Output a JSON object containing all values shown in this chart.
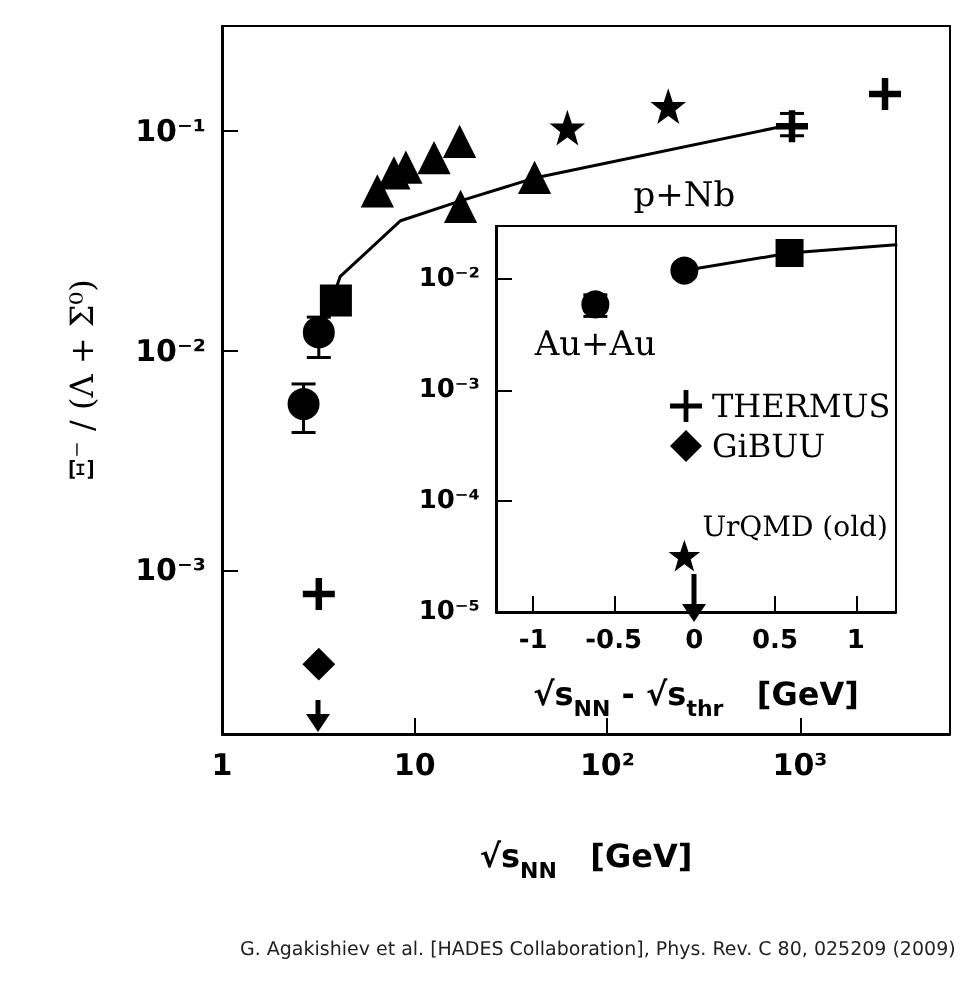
{
  "chart_data": [
    {
      "type": "scatter",
      "xlabel": "√s$_{NN}$   [GeV]",
      "ylabel": "Ξ⁻ / (Λ + Σ⁰)",
      "log": "xy",
      "xlim": [
        1,
        6000
      ],
      "ylim": [
        0.00018,
        0.3
      ],
      "xticks": [
        1,
        10,
        {
          "value": 100,
          "label": "10²"
        },
        {
          "value": 1000,
          "label": "10³"
        }
      ],
      "yticks": [
        {
          "value": 0.001,
          "label": "10⁻³"
        },
        {
          "value": 0.01,
          "label": "10⁻²"
        },
        {
          "value": 0.1,
          "label": "10⁻¹"
        }
      ],
      "grid": false,
      "legend": "right",
      "annotations": [
        "G. Agakishiev et al. [HADES Collaboration], Phys. Rev. C 80, 025209 (2009)"
      ],
      "series": [
        {
          "marker": "triangle",
          "color": "#000000",
          "x": [
            6.4,
            7.8,
            9.0,
            12.6,
            17.1
          ],
          "values": [
            0.053,
            0.064,
            0.068,
            0.075,
            0.089
          ]
        },
        {
          "marker": "star",
          "color": "#000000",
          "x": [
            62,
            207
          ],
          "values": [
            0.103,
            0.129
          ]
        },
        {
          "marker": "cross",
          "color": "#000000",
          "x": [
            2760
          ],
          "values": [
            0.147
          ]
        },
        {
          "marker": "cross",
          "color": "#000000",
          "x": [
            908
          ],
          "values": [
            0.105
          ],
          "errors": [
            [
              0.095,
              0.12
            ]
          ]
        },
        {
          "marker": "triangle",
          "color": "#000000",
          "x": [
            17.3
          ],
          "values": [
            0.045
          ]
        },
        {
          "marker": "triangle",
          "color": "#000000",
          "x": [
            41.9
          ],
          "values": [
            0.061
          ]
        },
        {
          "marker": "square",
          "color": "#000000",
          "x": [
            3.9
          ],
          "values": [
            0.0169
          ]
        },
        {
          "marker": "circle",
          "color": "#000000",
          "x": [
            3.18
          ],
          "values": [
            0.0121
          ],
          "errors": [
            [
              0.0093,
              0.0142
            ]
          ]
        },
        {
          "marker": "circle",
          "color": "#000000",
          "x": [
            2.65
          ],
          "values": [
            0.00571
          ],
          "errors": [
            [
              0.00424,
              0.00705
            ]
          ]
        },
        {
          "name": "THERMUS",
          "marker": "cross",
          "color": "#000000",
          "x": [
            3.18
          ],
          "values": [
            0.00078
          ]
        },
        {
          "name": "GiBUU",
          "marker": "diamond",
          "color": "#000000",
          "x": [
            3.18
          ],
          "values": [
            0.000374
          ]
        },
        {
          "type": "line",
          "marker": "none",
          "line_style": "solid",
          "color": "#000000",
          "x": [
            3.24,
            4.1,
            8.45,
            17.3,
            41.9,
            908
          ],
          "values": [
            0.0119,
            0.0217,
            0.039,
            0.048,
            0.061,
            0.107
          ]
        }
      ]
    },
    {
      "type": "scatter",
      "xlabel": "√s$_{NN}$ - √s$_{thr}$   [GeV]",
      "log": "y",
      "xlim": [
        -1.23,
        1.25
      ],
      "ylim": [
        1e-05,
        0.03
      ],
      "xticks": [
        -1,
        -0.5,
        0,
        0.5,
        1
      ],
      "yticks": [
        {
          "value": 1e-05,
          "label": "10⁻⁵"
        },
        {
          "value": 0.0001,
          "label": "10⁻⁴"
        },
        {
          "value": 0.001,
          "label": "10⁻³"
        },
        {
          "value": 0.01,
          "label": "10⁻²"
        }
      ],
      "grid": false,
      "annotations": [
        {
          "text": "p+Nb",
          "x": -0.062,
          "y": 0.0119
        },
        {
          "text": "Au+Au",
          "x": -0.614,
          "y": 0.0059
        }
      ],
      "series": [
        {
          "marker": "circle",
          "color": "#000000",
          "x": [
            -0.614
          ],
          "values": [
            0.0059
          ],
          "errors": [
            [
              0.0046,
              0.0072
            ]
          ]
        },
        {
          "marker": "circle",
          "color": "#000000",
          "x": [
            -0.062
          ],
          "values": [
            0.0119
          ]
        },
        {
          "marker": "square",
          "color": "#000000",
          "x": [
            0.59
          ],
          "values": [
            0.0171
          ]
        },
        {
          "name": "UrQMD (old)",
          "marker": "star",
          "color": "#000000",
          "x": [
            -0.062
          ],
          "values": [
            3.2e-05
          ]
        },
        {
          "type": "line",
          "marker": "none",
          "line_style": "solid",
          "color": "#000000",
          "x": [
            -0.062,
            0.59,
            1.25
          ],
          "values": [
            0.0119,
            0.0171,
            0.0203
          ]
        }
      ]
    }
  ]
}
